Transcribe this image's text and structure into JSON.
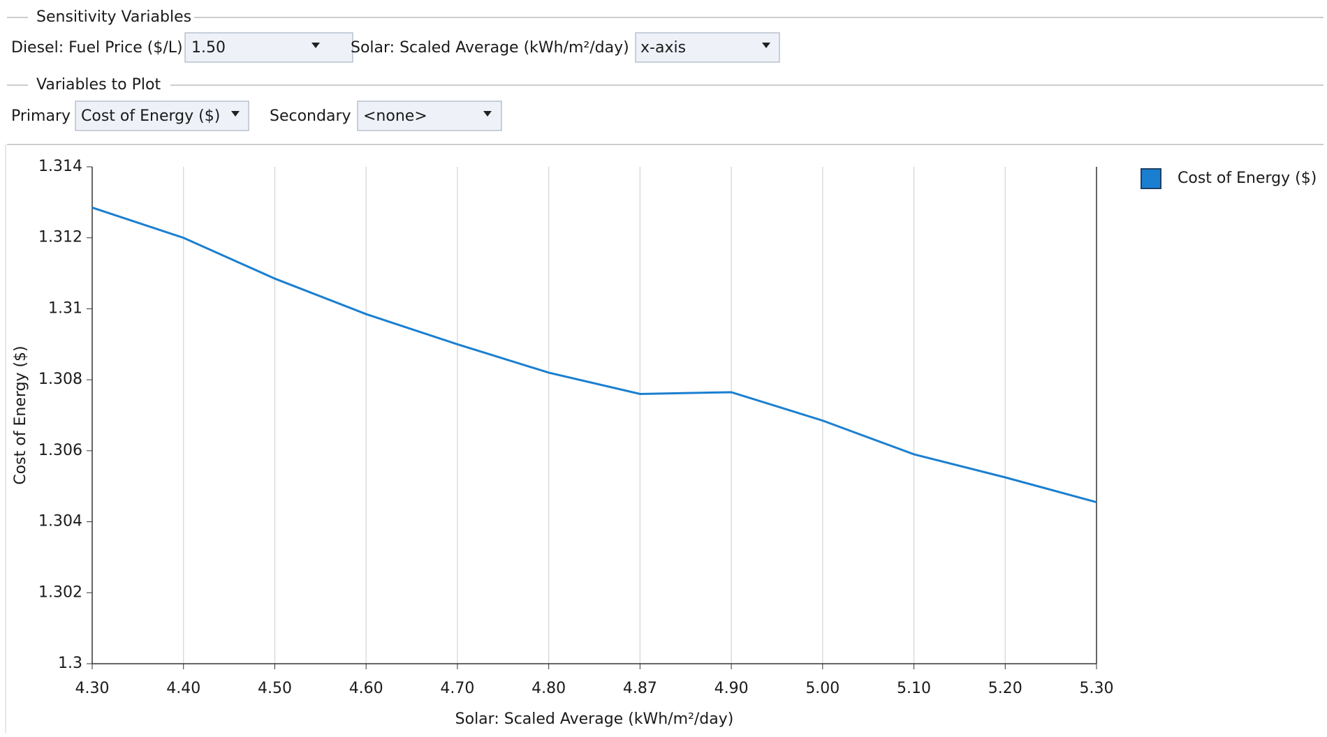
{
  "controls": {
    "sensitivity_title": "Sensitivity Variables",
    "diesel_label": "Diesel: Fuel Price ($/L)",
    "diesel_value": "1.50",
    "solar_label": "Solar: Scaled Average (kWh/m²/day)",
    "solar_value": "x-axis",
    "plot_title": "Variables to Plot",
    "primary_label": "Primary",
    "primary_value": "Cost of Energy ($)",
    "secondary_label": "Secondary",
    "secondary_value": "<none>"
  },
  "chart_data": {
    "type": "line",
    "x_label": "Solar: Scaled Average (kWh/m²/day)",
    "y_label": "Cost of Energy ($)",
    "categories": [
      "4.30",
      "4.40",
      "4.50",
      "4.60",
      "4.70",
      "4.80",
      "4.87",
      "4.90",
      "5.00",
      "5.10",
      "5.20",
      "5.30"
    ],
    "series": [
      {
        "name": "Cost of Energy ($)",
        "color": "#1a7fd0",
        "values": [
          1.31285,
          1.312,
          1.31085,
          1.30985,
          1.309,
          1.3082,
          1.3076,
          1.30765,
          1.30685,
          1.3059,
          1.30525,
          1.30455
        ]
      }
    ],
    "ylim": [
      1.3,
      1.314
    ],
    "yticks": [
      1.3,
      1.302,
      1.304,
      1.306,
      1.308,
      1.31,
      1.312,
      1.314
    ],
    "grid": true,
    "legend": "top-right"
  }
}
